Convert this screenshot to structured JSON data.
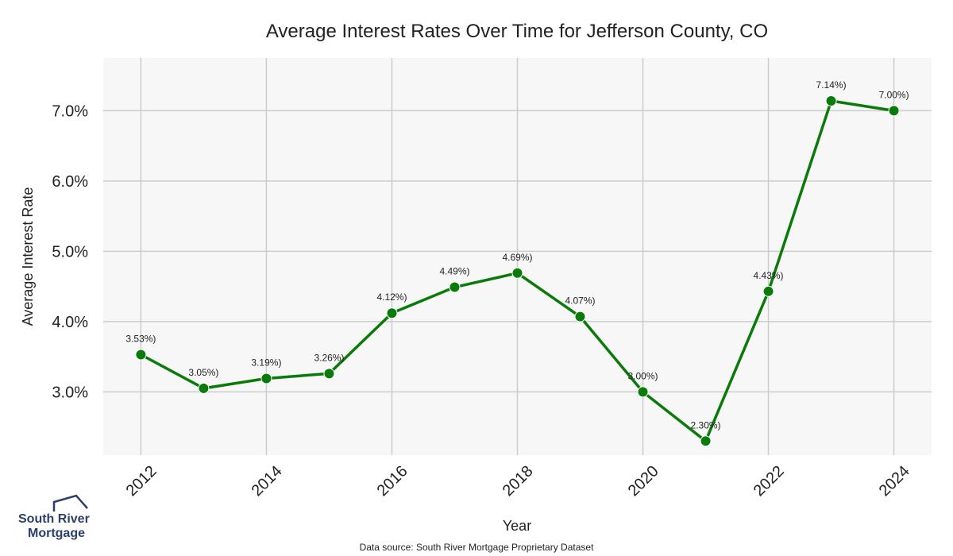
{
  "chart_data": {
    "type": "line",
    "title": "Average Interest Rates Over Time for Jefferson County, CO",
    "xlabel": "Year",
    "ylabel": "Average Interest Rate",
    "x": [
      2012,
      2013,
      2014,
      2015,
      2016,
      2017,
      2018,
      2019,
      2020,
      2021,
      2022,
      2023,
      2024
    ],
    "values": [
      3.53,
      3.05,
      3.19,
      3.26,
      4.12,
      4.49,
      4.69,
      4.07,
      3.0,
      2.3,
      4.43,
      7.14,
      7.0
    ],
    "data_labels": [
      "3.53%)",
      "3.05%)",
      "3.19%)",
      "3.26%)",
      "4.12%)",
      "4.49%)",
      "4.69%)",
      "4.07%)",
      "3.00%)",
      "2.30%)",
      "4.43%)",
      "7.14%)",
      "7.00%)"
    ],
    "x_ticks": [
      "2012",
      "2014",
      "2016",
      "2018",
      "2020",
      "2022",
      "2024"
    ],
    "x_tick_values": [
      2012,
      2014,
      2016,
      2018,
      2020,
      2022,
      2024
    ],
    "y_ticks": [
      "3.0%",
      "4.0%",
      "5.0%",
      "6.0%",
      "7.0%"
    ],
    "y_tick_values": [
      3.0,
      4.0,
      5.0,
      6.0,
      7.0
    ],
    "xlim": [
      2011.4,
      2024.6
    ],
    "ylim": [
      2.1,
      7.75
    ],
    "grid": true,
    "line_color": "#0a7a0a",
    "background_color": "#f7f7f7",
    "grid_color": "#cccccc"
  },
  "footer": {
    "source": "Data source: South River Mortgage Proprietary Dataset"
  },
  "logo": {
    "line1": "South River",
    "line2": "Mortgage",
    "color": "#2c3e6b"
  }
}
